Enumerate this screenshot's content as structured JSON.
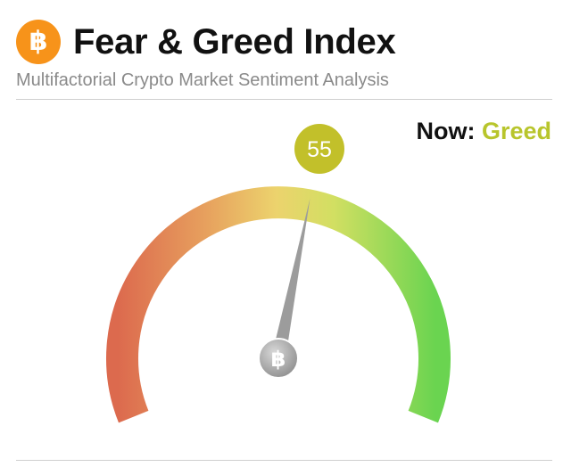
{
  "header": {
    "logo_glyph": "฿",
    "logo_icon": "bitcoin-icon",
    "title": "Fear & Greed Index",
    "subtitle": "Multifactorial Crypto Market Sentiment Analysis"
  },
  "status": {
    "now_label": "Now:",
    "classification": "Greed",
    "classification_color": "#b8c52c"
  },
  "gauge": {
    "value": 55,
    "value_text": "55",
    "min": 0,
    "max": 100,
    "badge_color": "#c2c02a",
    "needle_color": "#9c9c9c",
    "hub_glyph": "฿",
    "hub_icon": "bitcoin-icon",
    "scale_colors": [
      "#dc6a4e",
      "#e7a15e",
      "#ecd36d",
      "#d2df62",
      "#6ad450"
    ]
  }
}
